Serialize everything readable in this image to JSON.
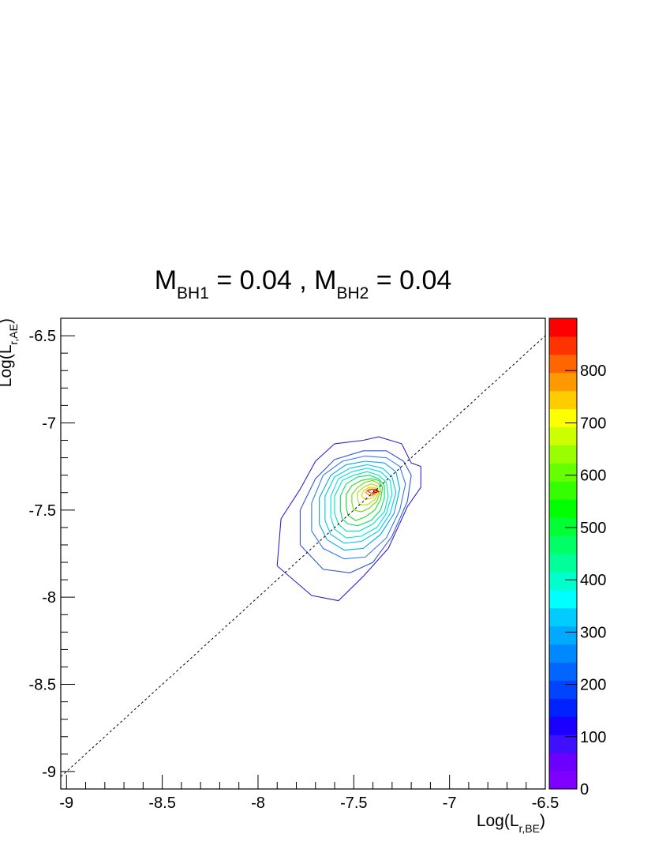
{
  "chart_data": {
    "type": "contour",
    "title": {
      "parts": [
        {
          "text": "M",
          "sub": false
        },
        {
          "text": "BH1",
          "sub": true
        },
        {
          "text": " = 0.04 , M",
          "sub": false
        },
        {
          "text": "BH2",
          "sub": true
        },
        {
          "text": " = 0.04",
          "sub": false
        }
      ]
    },
    "xlabel": {
      "main": "Log(L",
      "sub": "r,BE",
      "close": ")"
    },
    "ylabel": {
      "main": "Log(L",
      "sub": "r,AE",
      "close": ")"
    },
    "xlim": [
      -9.03,
      -6.5
    ],
    "ylim": [
      -9.1,
      -6.4
    ],
    "x_ticks": [
      {
        "value": -9,
        "label": "-9"
      },
      {
        "value": -8.5,
        "label": "-8.5"
      },
      {
        "value": -8,
        "label": "-8"
      },
      {
        "value": -7.5,
        "label": "-7.5"
      },
      {
        "value": -7,
        "label": "-7"
      },
      {
        "value": -6.5,
        "label": "-6.5"
      }
    ],
    "y_ticks": [
      {
        "value": -6.5,
        "label": "-6.5"
      },
      {
        "value": -7,
        "label": "-7"
      },
      {
        "value": -7.5,
        "label": "-7.5"
      },
      {
        "value": -8,
        "label": "-8"
      },
      {
        "value": -8.5,
        "label": "-8.5"
      },
      {
        "value": -9,
        "label": "-9"
      }
    ],
    "reference_line": {
      "style": "dashed",
      "points": [
        [
          -9.03,
          -9.03
        ],
        [
          -6.5,
          -6.5
        ]
      ]
    },
    "colorbar": {
      "min": 0,
      "max": 900,
      "ticks": [
        {
          "value": 0,
          "label": "0"
        },
        {
          "value": 100,
          "label": "100"
        },
        {
          "value": 200,
          "label": "200"
        },
        {
          "value": 300,
          "label": "300"
        },
        {
          "value": 400,
          "label": "400"
        },
        {
          "value": 500,
          "label": "500"
        },
        {
          "value": 600,
          "label": "600"
        },
        {
          "value": 700,
          "label": "700"
        },
        {
          "value": 800,
          "label": "800"
        }
      ],
      "colors": [
        "#7f00ff",
        "#6b00ff",
        "#3f10ff",
        "#1a00ff",
        "#0022ff",
        "#0044ff",
        "#0066ff",
        "#0088ff",
        "#00aaff",
        "#00ccff",
        "#00ffff",
        "#00ffcc",
        "#00ff99",
        "#00ff66",
        "#00ff33",
        "#00ff00",
        "#33ff00",
        "#66ff00",
        "#99ff00",
        "#ccff00",
        "#ffff00",
        "#ffcc00",
        "#ff9900",
        "#ff6600",
        "#ff3300",
        "#ff0000"
      ]
    },
    "contours": [
      {
        "color": "#3322cc",
        "points": [
          [
            -7.9,
            -7.82
          ],
          [
            -7.88,
            -7.55
          ],
          [
            -7.78,
            -7.38
          ],
          [
            -7.7,
            -7.22
          ],
          [
            -7.6,
            -7.12
          ],
          [
            -7.45,
            -7.1
          ],
          [
            -7.37,
            -7.08
          ],
          [
            -7.25,
            -7.12
          ],
          [
            -7.2,
            -7.23
          ],
          [
            -7.15,
            -7.25
          ],
          [
            -7.15,
            -7.37
          ],
          [
            -7.22,
            -7.48
          ],
          [
            -7.32,
            -7.72
          ],
          [
            -7.45,
            -7.88
          ],
          [
            -7.58,
            -8.02
          ],
          [
            -7.72,
            -7.99
          ],
          [
            -7.9,
            -7.82
          ]
        ]
      },
      {
        "color": "#3355dd",
        "points": [
          [
            -7.78,
            -7.7
          ],
          [
            -7.78,
            -7.5
          ],
          [
            -7.7,
            -7.32
          ],
          [
            -7.6,
            -7.21
          ],
          [
            -7.45,
            -7.16
          ],
          [
            -7.33,
            -7.16
          ],
          [
            -7.24,
            -7.22
          ],
          [
            -7.2,
            -7.3
          ],
          [
            -7.22,
            -7.45
          ],
          [
            -7.3,
            -7.65
          ],
          [
            -7.4,
            -7.8
          ],
          [
            -7.52,
            -7.86
          ],
          [
            -7.66,
            -7.84
          ],
          [
            -7.78,
            -7.7
          ]
        ]
      },
      {
        "color": "#3377ee",
        "points": [
          [
            -7.72,
            -7.62
          ],
          [
            -7.72,
            -7.46
          ],
          [
            -7.66,
            -7.3
          ],
          [
            -7.56,
            -7.22
          ],
          [
            -7.44,
            -7.19
          ],
          [
            -7.33,
            -7.2
          ],
          [
            -7.26,
            -7.25
          ],
          [
            -7.23,
            -7.35
          ],
          [
            -7.26,
            -7.5
          ],
          [
            -7.33,
            -7.66
          ],
          [
            -7.44,
            -7.77
          ],
          [
            -7.55,
            -7.78
          ],
          [
            -7.66,
            -7.72
          ],
          [
            -7.72,
            -7.62
          ]
        ]
      },
      {
        "color": "#00a8e8",
        "points": [
          [
            -7.68,
            -7.58
          ],
          [
            -7.68,
            -7.43
          ],
          [
            -7.62,
            -7.3
          ],
          [
            -7.54,
            -7.24
          ],
          [
            -7.44,
            -7.22
          ],
          [
            -7.34,
            -7.23
          ],
          [
            -7.28,
            -7.28
          ],
          [
            -7.26,
            -7.38
          ],
          [
            -7.29,
            -7.52
          ],
          [
            -7.36,
            -7.64
          ],
          [
            -7.45,
            -7.72
          ],
          [
            -7.55,
            -7.73
          ],
          [
            -7.64,
            -7.67
          ],
          [
            -7.68,
            -7.58
          ]
        ]
      },
      {
        "color": "#00c8ee",
        "points": [
          [
            -7.65,
            -7.56
          ],
          [
            -7.65,
            -7.42
          ],
          [
            -7.6,
            -7.31
          ],
          [
            -7.52,
            -7.26
          ],
          [
            -7.43,
            -7.24
          ],
          [
            -7.35,
            -7.26
          ],
          [
            -7.3,
            -7.31
          ],
          [
            -7.28,
            -7.4
          ],
          [
            -7.31,
            -7.52
          ],
          [
            -7.37,
            -7.62
          ],
          [
            -7.46,
            -7.68
          ],
          [
            -7.55,
            -7.69
          ],
          [
            -7.62,
            -7.64
          ],
          [
            -7.65,
            -7.56
          ]
        ]
      },
      {
        "color": "#00e0e0",
        "points": [
          [
            -7.62,
            -7.54
          ],
          [
            -7.62,
            -7.42
          ],
          [
            -7.58,
            -7.32
          ],
          [
            -7.51,
            -7.28
          ],
          [
            -7.43,
            -7.26
          ],
          [
            -7.36,
            -7.28
          ],
          [
            -7.31,
            -7.33
          ],
          [
            -7.3,
            -7.41
          ],
          [
            -7.33,
            -7.52
          ],
          [
            -7.38,
            -7.6
          ],
          [
            -7.46,
            -7.65
          ],
          [
            -7.54,
            -7.66
          ],
          [
            -7.6,
            -7.61
          ],
          [
            -7.62,
            -7.54
          ]
        ]
      },
      {
        "color": "#00e8b0",
        "points": [
          [
            -7.6,
            -7.52
          ],
          [
            -7.6,
            -7.42
          ],
          [
            -7.56,
            -7.33
          ],
          [
            -7.5,
            -7.3
          ],
          [
            -7.43,
            -7.28
          ],
          [
            -7.37,
            -7.3
          ],
          [
            -7.33,
            -7.34
          ],
          [
            -7.32,
            -7.42
          ],
          [
            -7.34,
            -7.51
          ],
          [
            -7.4,
            -7.58
          ],
          [
            -7.47,
            -7.62
          ],
          [
            -7.54,
            -7.62
          ],
          [
            -7.58,
            -7.58
          ],
          [
            -7.6,
            -7.52
          ]
        ]
      },
      {
        "color": "#00e070",
        "points": [
          [
            -7.57,
            -7.5
          ],
          [
            -7.57,
            -7.42
          ],
          [
            -7.54,
            -7.35
          ],
          [
            -7.48,
            -7.31
          ],
          [
            -7.42,
            -7.3
          ],
          [
            -7.37,
            -7.32
          ],
          [
            -7.34,
            -7.36
          ],
          [
            -7.34,
            -7.43
          ],
          [
            -7.36,
            -7.5
          ],
          [
            -7.41,
            -7.56
          ],
          [
            -7.48,
            -7.59
          ],
          [
            -7.53,
            -7.58
          ],
          [
            -7.56,
            -7.55
          ],
          [
            -7.57,
            -7.5
          ]
        ]
      },
      {
        "color": "#22dd22",
        "points": [
          [
            -7.54,
            -7.48
          ],
          [
            -7.54,
            -7.41
          ],
          [
            -7.51,
            -7.36
          ],
          [
            -7.46,
            -7.33
          ],
          [
            -7.41,
            -7.32
          ],
          [
            -7.37,
            -7.33
          ],
          [
            -7.35,
            -7.37
          ],
          [
            -7.36,
            -7.44
          ],
          [
            -7.39,
            -7.5
          ],
          [
            -7.44,
            -7.54
          ],
          [
            -7.49,
            -7.56
          ],
          [
            -7.53,
            -7.53
          ],
          [
            -7.54,
            -7.48
          ]
        ]
      },
      {
        "color": "#66dd00",
        "points": [
          [
            -7.51,
            -7.46
          ],
          [
            -7.51,
            -7.41
          ],
          [
            -7.48,
            -7.37
          ],
          [
            -7.44,
            -7.34
          ],
          [
            -7.4,
            -7.33
          ],
          [
            -7.37,
            -7.35
          ],
          [
            -7.36,
            -7.39
          ],
          [
            -7.38,
            -7.45
          ],
          [
            -7.42,
            -7.49
          ],
          [
            -7.46,
            -7.51
          ],
          [
            -7.5,
            -7.5
          ],
          [
            -7.51,
            -7.46
          ]
        ]
      },
      {
        "color": "#aadd00",
        "points": [
          [
            -7.48,
            -7.44
          ],
          [
            -7.48,
            -7.4
          ],
          [
            -7.45,
            -7.37
          ],
          [
            -7.41,
            -7.35
          ],
          [
            -7.38,
            -7.36
          ],
          [
            -7.37,
            -7.4
          ],
          [
            -7.39,
            -7.44
          ],
          [
            -7.43,
            -7.47
          ],
          [
            -7.47,
            -7.47
          ],
          [
            -7.48,
            -7.44
          ]
        ]
      },
      {
        "color": "#ddcc00",
        "points": [
          [
            -7.46,
            -7.42
          ],
          [
            -7.45,
            -7.39
          ],
          [
            -7.42,
            -7.37
          ],
          [
            -7.39,
            -7.37
          ],
          [
            -7.38,
            -7.4
          ],
          [
            -7.4,
            -7.43
          ],
          [
            -7.44,
            -7.44
          ],
          [
            -7.46,
            -7.42
          ]
        ]
      },
      {
        "color": "#ff8800",
        "points": [
          [
            -7.44,
            -7.4
          ],
          [
            -7.42,
            -7.38
          ],
          [
            -7.39,
            -7.38
          ],
          [
            -7.38,
            -7.4
          ],
          [
            -7.41,
            -7.42
          ],
          [
            -7.44,
            -7.4
          ]
        ]
      },
      {
        "color": "#ff3300",
        "points": [
          [
            -7.43,
            -7.39
          ],
          [
            -7.4,
            -7.38
          ],
          [
            -7.38,
            -7.39
          ],
          [
            -7.4,
            -7.41
          ],
          [
            -7.43,
            -7.39
          ]
        ]
      },
      {
        "color": "#aa0000",
        "points": [
          [
            -7.4,
            -7.39
          ],
          [
            -7.38,
            -7.385
          ],
          [
            -7.37,
            -7.395
          ],
          [
            -7.39,
            -7.4
          ],
          [
            -7.4,
            -7.39
          ]
        ]
      }
    ]
  }
}
